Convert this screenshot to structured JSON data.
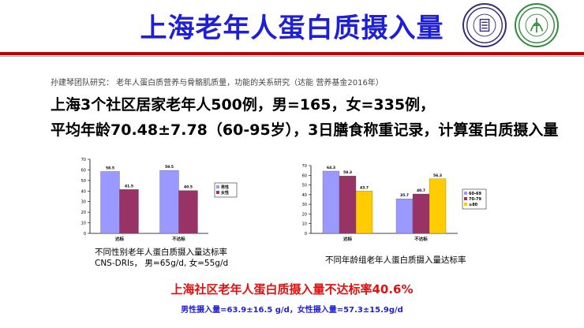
{
  "slide": {
    "title": "上海老年人蛋白质摄入量",
    "source": "孙建琴团队研究： 老年人蛋白质营养与骨骼肌质量，功能的关系研究（达能 营养基金2016年）",
    "line1": "上海3个社区居家老年人500例，男=165，女=335例，",
    "line2": "平均年龄70.48±7.78（60-95岁），3日膳食称重记录，计算蛋白质摄入量",
    "caption1_line1": "不同性别老年人蛋白质摄入量达标率",
    "caption1_line2": "CNS-DRIs， 男=65g/d, 女=55g/d",
    "caption2": "不同年龄组老年人蛋白质摄入量达标率",
    "conclusion": "上海社区老年人蛋白质摄入量不达标率40.6%",
    "intake": "男性摄入量=63.9±16.5 g/d，女性摄入量=57.3±15.9g/d"
  },
  "logos": [
    {
      "name": "fudan-university-seal",
      "text": "FUDAN UNIVERSITY 1905",
      "color": "#3a2b7a"
    },
    {
      "name": "huadong-hospital-seal",
      "text": "华东医院 HUADONG HOSPITAL",
      "color": "#2f8a3a"
    }
  ],
  "chart_data": [
    {
      "type": "bar",
      "categories": [
        "达标",
        "不达标"
      ],
      "yticks": [
        0,
        10,
        20,
        30,
        40,
        50,
        60,
        70
      ],
      "ylim": [
        0,
        70
      ],
      "series": [
        {
          "name": "男性",
          "values": [
            58.5,
            59.5
          ],
          "labels": [
            "58.5",
            "59.5"
          ],
          "color": "#9999ff"
        },
        {
          "name": "女性",
          "values": [
            41.5,
            40.5
          ],
          "labels": [
            "41.5",
            "40.5"
          ],
          "color": "#993366"
        }
      ],
      "legend": "right"
    },
    {
      "type": "bar",
      "categories": [
        "达标",
        "不达标"
      ],
      "yticks": [
        0,
        10,
        20,
        30,
        40,
        50,
        60,
        70
      ],
      "ylim": [
        0,
        70
      ],
      "series": [
        {
          "name": "60-69",
          "values": [
            64.3,
            35.7
          ],
          "labels": [
            "64.3",
            "35.7"
          ],
          "color": "#9999ff"
        },
        {
          "name": "70-79",
          "values": [
            59.3,
            40.7
          ],
          "labels": [
            "59.3",
            "40.7"
          ],
          "color": "#993366"
        },
        {
          "name": "≥80",
          "values": [
            43.7,
            56.3
          ],
          "labels": [
            "43.7",
            "56.3"
          ],
          "color": "#ffcc00"
        }
      ],
      "legend": "right"
    }
  ]
}
